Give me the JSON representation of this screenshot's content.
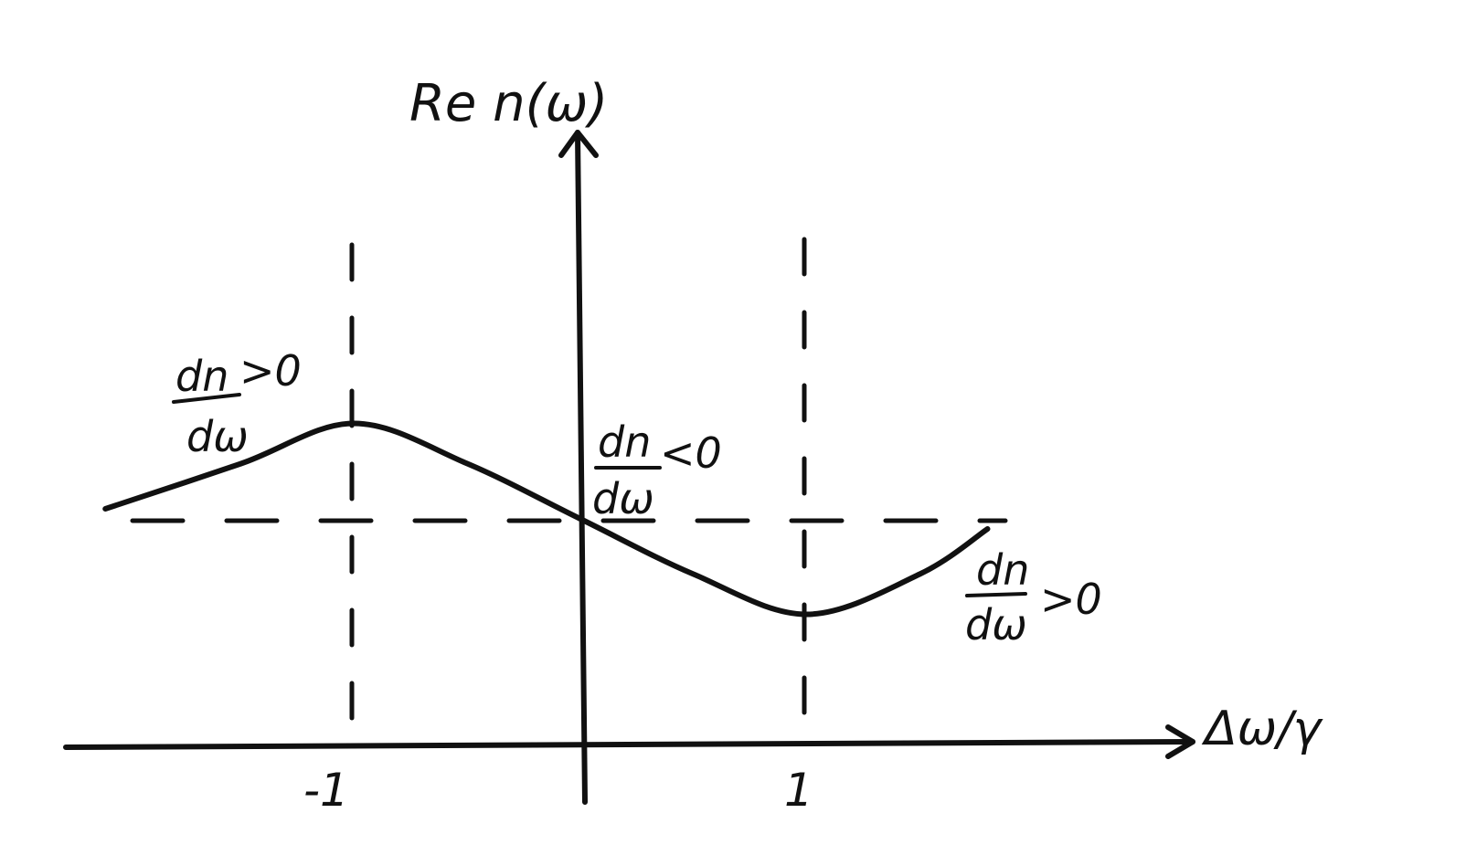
{
  "axes": {
    "y_label": "Re n(ω)",
    "x_label": "Δω/γ"
  },
  "ticks": {
    "neg_one": "-1",
    "pos_one": "1"
  },
  "annotations": {
    "left": {
      "numerator": "dn",
      "denominator": "dω",
      "relation": ">0"
    },
    "center": {
      "numerator": "dn",
      "denominator": "dω",
      "relation": "<0"
    },
    "right": {
      "numerator": "dn",
      "denominator": "dω",
      "relation": ">0"
    }
  },
  "chart_data": {
    "type": "line",
    "title": "",
    "xlabel": "Δω/γ",
    "ylabel": "Re n(ω)",
    "x_ticks": [
      "-1",
      "1"
    ],
    "grid": false,
    "series": [
      {
        "x": [
          -2.1,
          -1.5,
          -1.0,
          -0.5,
          0.0,
          0.5,
          1.0,
          1.5,
          1.8
        ],
        "y": [
          0.1,
          0.55,
          0.95,
          0.55,
          0.0,
          -0.55,
          -0.95,
          -0.55,
          -0.1
        ]
      }
    ],
    "reference_lines": [
      {
        "orientation": "horizontal",
        "y": 0,
        "style": "dashed"
      },
      {
        "orientation": "vertical",
        "x": -1,
        "style": "dashed"
      },
      {
        "orientation": "vertical",
        "x": 1,
        "style": "dashed"
      }
    ]
  }
}
